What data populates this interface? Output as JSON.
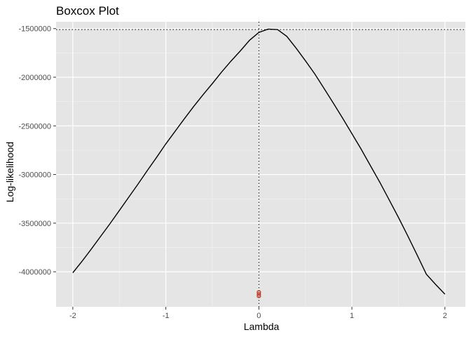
{
  "chart_data": {
    "type": "line",
    "title": "Boxcox Plot",
    "xlabel": "Lambda",
    "ylabel": "Log-likelihood",
    "xlim": [
      -2.18,
      2.22
    ],
    "ylim": [
      -4360000,
      -1430000
    ],
    "x_ticks": [
      -2,
      -1,
      0,
      1,
      2
    ],
    "x_tick_labels": [
      "-2",
      "-1",
      "0",
      "1",
      "2"
    ],
    "y_ticks": [
      -1500000,
      -2000000,
      -2500000,
      -3000000,
      -3500000,
      -4000000
    ],
    "y_tick_labels": [
      "-1500000",
      "-2000000",
      "-2500000",
      "-3000000",
      "-3500000",
      "-4000000"
    ],
    "grid": true,
    "background": "#e5e5e5",
    "series": [
      {
        "color": "#000000",
        "x": [
          -2.0,
          -1.9,
          -1.8,
          -1.7,
          -1.6,
          -1.5,
          -1.4,
          -1.3,
          -1.2,
          -1.1,
          -1.0,
          -0.9,
          -0.8,
          -0.7,
          -0.6,
          -0.5,
          -0.4,
          -0.3,
          -0.2,
          -0.1,
          0.0,
          0.1,
          0.2,
          0.3,
          0.4,
          0.5,
          0.6,
          0.7,
          0.8,
          0.9,
          1.0,
          1.1,
          1.2,
          1.3,
          1.4,
          1.5,
          1.6,
          1.7,
          1.8,
          1.9,
          2.0
        ],
        "y": [
          -4010000,
          -3890000,
          -3765000,
          -3635000,
          -3505000,
          -3370000,
          -3235000,
          -3100000,
          -2960000,
          -2825000,
          -2685000,
          -2555000,
          -2425000,
          -2300000,
          -2180000,
          -2065000,
          -1945000,
          -1835000,
          -1730000,
          -1620000,
          -1540000,
          -1505000,
          -1510000,
          -1580000,
          -1700000,
          -1830000,
          -1965000,
          -2115000,
          -2265000,
          -2420000,
          -2580000,
          -2740000,
          -2910000,
          -3080000,
          -3260000,
          -3440000,
          -3630000,
          -3825000,
          -4025000,
          -4130000,
          -4230000
        ]
      }
    ],
    "reference_lines": {
      "vertical_x": 0,
      "horizontal_y": -1510000,
      "style": "dotted"
    },
    "markers": {
      "color": "#c0392b",
      "points": [
        {
          "x": 0.0,
          "y": -4210000
        },
        {
          "x": 0.0,
          "y": -4230000
        },
        {
          "x": 0.0,
          "y": -4250000
        }
      ]
    }
  }
}
